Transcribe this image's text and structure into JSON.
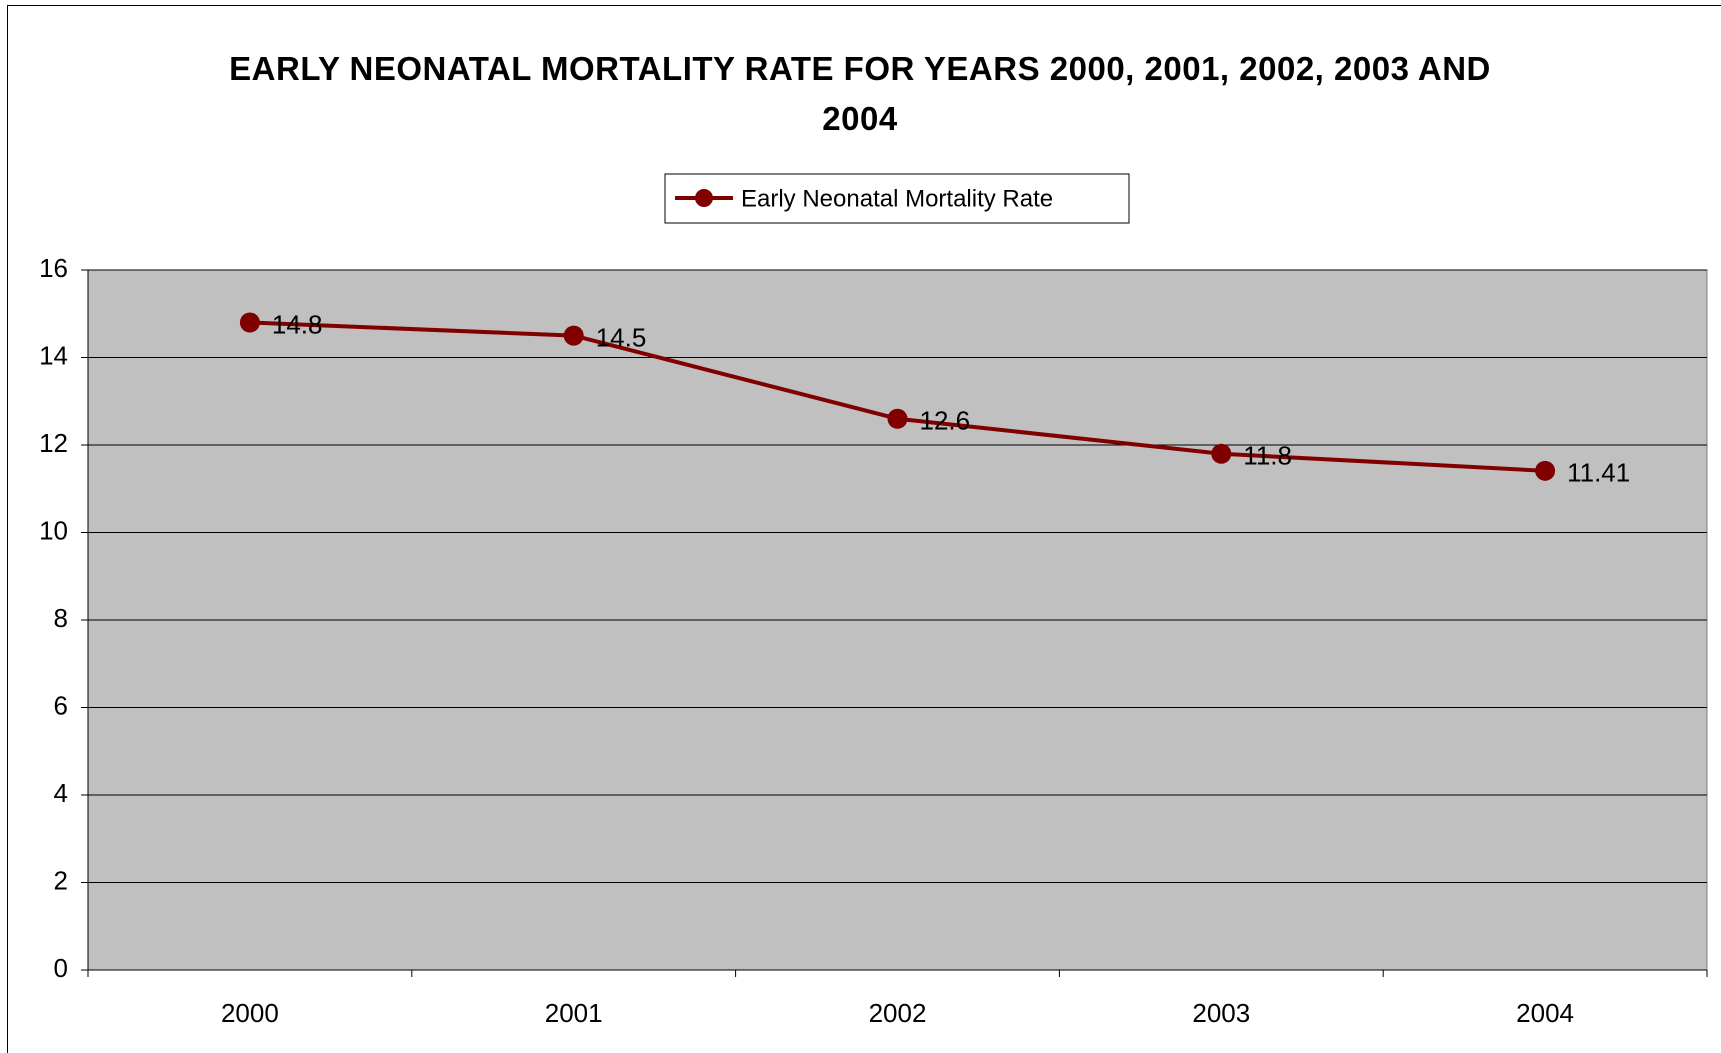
{
  "chart_data": {
    "type": "line",
    "title": "EARLY NEONATAL MORTALITY RATE FOR YEARS 2000, 2001, 2002, 2003 AND 2004",
    "categories": [
      "2000",
      "2001",
      "2002",
      "2003",
      "2004"
    ],
    "series": [
      {
        "name": "Early Neonatal Mortality Rate",
        "color": "#800000",
        "values": [
          14.8,
          14.5,
          12.6,
          11.8,
          11.41
        ]
      }
    ],
    "ylim": [
      0,
      16
    ],
    "yticks": [
      0,
      2,
      4,
      6,
      8,
      10,
      12,
      14,
      16
    ],
    "grid": true,
    "legend": "top"
  }
}
